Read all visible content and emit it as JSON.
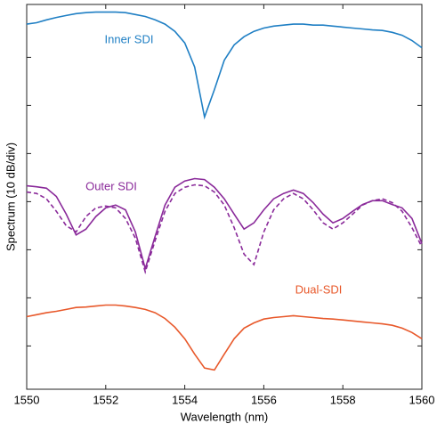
{
  "chart_data": {
    "type": "line",
    "xlabel": "Wavelength (nm)",
    "ylabel": "Spectrum (10 dB/div)",
    "x": [
      1550,
      1550.25,
      1550.5,
      1550.75,
      1551,
      1551.25,
      1551.5,
      1551.75,
      1552,
      1552.25,
      1552.5,
      1552.75,
      1553,
      1553.25,
      1553.5,
      1553.75,
      1554,
      1554.25,
      1554.5,
      1554.75,
      1555,
      1555.25,
      1555.5,
      1555.75,
      1556,
      1556.25,
      1556.5,
      1556.75,
      1557,
      1557.25,
      1557.5,
      1557.75,
      1558,
      1558.25,
      1558.5,
      1558.75,
      1559,
      1559.25,
      1559.5,
      1559.75,
      1560
    ],
    "series": [
      {
        "name": "Inner SDI",
        "color": "#1f7fc4",
        "values": [
          76.9,
          77.2,
          77.8,
          78.3,
          78.7,
          79.1,
          79.3,
          79.4,
          79.4,
          79.4,
          79.3,
          78.9,
          78.5,
          77.8,
          76.9,
          75.4,
          73.0,
          68.0,
          57.6,
          63.3,
          69.4,
          72.6,
          74.3,
          75.4,
          76.1,
          76.5,
          76.7,
          76.9,
          76.9,
          76.7,
          76.7,
          76.5,
          76.3,
          76.1,
          75.9,
          75.7,
          75.6,
          75.2,
          74.6,
          73.5,
          72.0
        ]
      },
      {
        "name": "Outer SDI",
        "color": "#8a2a9a",
        "values": [
          43.3,
          43.1,
          42.8,
          41.1,
          37.4,
          33.1,
          34.3,
          36.9,
          38.7,
          39.3,
          38.3,
          33.7,
          26.1,
          32.8,
          39.3,
          43.0,
          44.3,
          44.8,
          44.6,
          43.0,
          40.6,
          37.4,
          34.3,
          35.6,
          38.3,
          40.6,
          41.7,
          42.4,
          41.7,
          39.8,
          37.4,
          35.6,
          36.5,
          38.0,
          39.4,
          40.2,
          40.2,
          39.4,
          38.7,
          36.5,
          31.3
        ]
      },
      {
        "color": "#8a2a9a",
        "dashed": true,
        "values": [
          42.0,
          41.7,
          40.6,
          38.0,
          35.0,
          33.7,
          36.9,
          38.7,
          39.1,
          38.7,
          36.5,
          32.4,
          25.4,
          31.9,
          38.0,
          41.7,
          43.0,
          43.5,
          43.3,
          42.0,
          39.3,
          34.6,
          29.1,
          26.9,
          33.7,
          38.3,
          40.6,
          41.7,
          40.6,
          38.3,
          35.6,
          34.3,
          35.6,
          37.4,
          39.3,
          40.2,
          40.6,
          39.8,
          38.0,
          34.6,
          30.6
        ]
      },
      {
        "name": "Dual-SDI",
        "color": "#e8582a",
        "values": [
          16.1,
          16.5,
          16.9,
          17.2,
          17.6,
          18.0,
          18.1,
          18.3,
          18.5,
          18.5,
          18.3,
          18.0,
          17.6,
          16.9,
          15.7,
          13.9,
          11.5,
          8.3,
          5.4,
          5.0,
          8.3,
          11.5,
          13.7,
          14.8,
          15.6,
          15.9,
          16.1,
          16.3,
          16.1,
          15.9,
          15.7,
          15.6,
          15.4,
          15.2,
          15.0,
          14.8,
          14.6,
          14.3,
          13.7,
          12.8,
          11.5
        ]
      }
    ],
    "xlim": [
      1550,
      1560
    ],
    "xticks": [
      1550,
      1552,
      1554,
      1556,
      1558,
      1560
    ],
    "ylim": [
      1,
      81
    ],
    "yticks": [
      10,
      20,
      30,
      40,
      50,
      60,
      70
    ]
  }
}
